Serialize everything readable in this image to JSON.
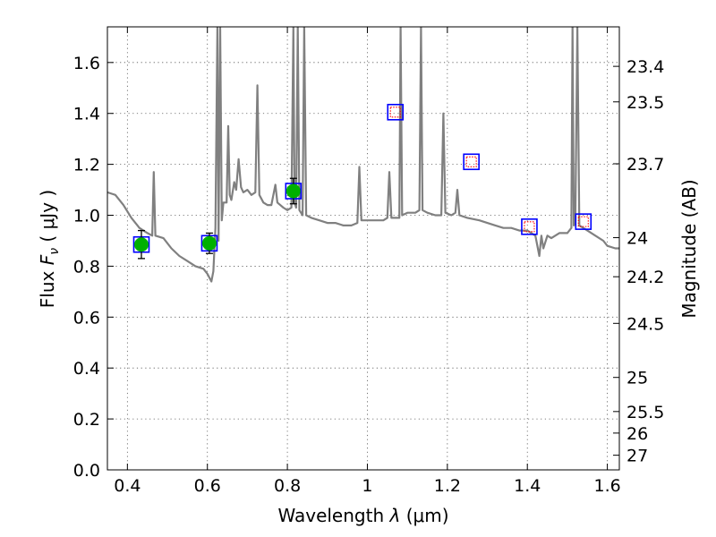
{
  "chart_data": {
    "type": "scatter",
    "xlabel": "Wavelength",
    "xlabel_symbol": "λ",
    "xlabel_unit": "(μm)",
    "ylabel": "Flux",
    "ylabel_symbol": "F",
    "ylabel_sub": "ν",
    "ylabel_unit": "( μJy )",
    "y2label": "Magnitude (AB)",
    "xlim": [
      0.35,
      1.63
    ],
    "ylim": [
      0.0,
      1.74
    ],
    "grid": true,
    "x_ticks": [
      0.4,
      0.6,
      0.8,
      1.0,
      1.2,
      1.4,
      1.6
    ],
    "x_tick_labels": [
      "0.4",
      "0.6",
      "0.8",
      "1",
      "1.2",
      "1.4",
      "1.6"
    ],
    "y_ticks": [
      0.0,
      0.2,
      0.4,
      0.6,
      0.8,
      1.0,
      1.2,
      1.4,
      1.6
    ],
    "y_tick_labels": [
      "0.0",
      "0.2",
      "0.4",
      "0.6",
      "0.8",
      "1.0",
      "1.2",
      "1.4",
      "1.6"
    ],
    "y2_ticks": [
      23.4,
      23.5,
      23.7,
      24,
      24.2,
      24.5,
      25,
      25.5,
      26,
      27
    ],
    "y2_tick_labels": [
      "23.4",
      "23.5",
      "23.7",
      "24",
      "24.2",
      "24.5",
      "25",
      "25.5",
      "26",
      "27"
    ],
    "model_spectrum": {
      "color": "#808080",
      "points": [
        [
          0.35,
          1.09
        ],
        [
          0.37,
          1.08
        ],
        [
          0.39,
          1.04
        ],
        [
          0.41,
          0.99
        ],
        [
          0.43,
          0.95
        ],
        [
          0.45,
          0.93
        ],
        [
          0.462,
          0.92
        ],
        [
          0.466,
          1.17
        ],
        [
          0.47,
          0.92
        ],
        [
          0.49,
          0.91
        ],
        [
          0.51,
          0.87
        ],
        [
          0.53,
          0.84
        ],
        [
          0.55,
          0.82
        ],
        [
          0.57,
          0.8
        ],
        [
          0.59,
          0.79
        ],
        [
          0.6,
          0.77
        ],
        [
          0.61,
          0.74
        ],
        [
          0.615,
          0.78
        ],
        [
          0.62,
          0.95
        ],
        [
          0.625,
          1.74
        ],
        [
          0.628,
          0.9
        ],
        [
          0.632,
          1.74
        ],
        [
          0.636,
          0.98
        ],
        [
          0.64,
          1.05
        ],
        [
          0.648,
          1.05
        ],
        [
          0.652,
          1.35
        ],
        [
          0.656,
          1.08
        ],
        [
          0.66,
          1.06
        ],
        [
          0.667,
          1.13
        ],
        [
          0.672,
          1.1
        ],
        [
          0.678,
          1.22
        ],
        [
          0.684,
          1.11
        ],
        [
          0.69,
          1.09
        ],
        [
          0.7,
          1.1
        ],
        [
          0.71,
          1.08
        ],
        [
          0.72,
          1.09
        ],
        [
          0.725,
          1.51
        ],
        [
          0.73,
          1.08
        ],
        [
          0.74,
          1.05
        ],
        [
          0.75,
          1.04
        ],
        [
          0.76,
          1.04
        ],
        [
          0.77,
          1.12
        ],
        [
          0.775,
          1.05
        ],
        [
          0.79,
          1.03
        ],
        [
          0.8,
          1.02
        ],
        [
          0.81,
          1.03
        ],
        [
          0.815,
          1.74
        ],
        [
          0.818,
          1.05
        ],
        [
          0.822,
          1.03
        ],
        [
          0.826,
          1.74
        ],
        [
          0.83,
          1.02
        ],
        [
          0.838,
          1.0
        ],
        [
          0.842,
          1.74
        ],
        [
          0.847,
          1.0
        ],
        [
          0.86,
          0.99
        ],
        [
          0.88,
          0.98
        ],
        [
          0.9,
          0.97
        ],
        [
          0.92,
          0.97
        ],
        [
          0.94,
          0.96
        ],
        [
          0.96,
          0.96
        ],
        [
          0.975,
          0.97
        ],
        [
          0.98,
          1.19
        ],
        [
          0.985,
          0.98
        ],
        [
          1.0,
          0.98
        ],
        [
          1.02,
          0.98
        ],
        [
          1.04,
          0.98
        ],
        [
          1.05,
          0.99
        ],
        [
          1.055,
          1.17
        ],
        [
          1.06,
          0.99
        ],
        [
          1.07,
          0.99
        ],
        [
          1.08,
          0.99
        ],
        [
          1.083,
          1.74
        ],
        [
          1.087,
          1.0
        ],
        [
          1.1,
          1.01
        ],
        [
          1.12,
          1.01
        ],
        [
          1.13,
          1.02
        ],
        [
          1.134,
          1.74
        ],
        [
          1.138,
          1.02
        ],
        [
          1.15,
          1.01
        ],
        [
          1.17,
          1.0
        ],
        [
          1.185,
          1.0
        ],
        [
          1.19,
          1.4
        ],
        [
          1.195,
          1.01
        ],
        [
          1.21,
          1.0
        ],
        [
          1.22,
          1.01
        ],
        [
          1.225,
          1.1
        ],
        [
          1.23,
          1.0
        ],
        [
          1.25,
          0.99
        ],
        [
          1.28,
          0.98
        ],
        [
          1.3,
          0.97
        ],
        [
          1.32,
          0.96
        ],
        [
          1.34,
          0.95
        ],
        [
          1.36,
          0.95
        ],
        [
          1.38,
          0.94
        ],
        [
          1.4,
          0.94
        ],
        [
          1.42,
          0.92
        ],
        [
          1.43,
          0.84
        ],
        [
          1.435,
          0.92
        ],
        [
          1.44,
          0.87
        ],
        [
          1.45,
          0.92
        ],
        [
          1.46,
          0.91
        ],
        [
          1.48,
          0.93
        ],
        [
          1.5,
          0.93
        ],
        [
          1.51,
          0.95
        ],
        [
          1.513,
          1.74
        ],
        [
          1.516,
          0.96
        ],
        [
          1.52,
          0.97
        ],
        [
          1.525,
          1.74
        ],
        [
          1.53,
          0.96
        ],
        [
          1.54,
          0.95
        ],
        [
          1.55,
          0.94
        ],
        [
          1.57,
          0.92
        ],
        [
          1.59,
          0.9
        ],
        [
          1.6,
          0.88
        ],
        [
          1.62,
          0.87
        ],
        [
          1.63,
          0.87
        ]
      ]
    },
    "observed_points": {
      "color": "#00b000",
      "points": [
        {
          "x": 0.435,
          "y": 0.885,
          "err": 0.055
        },
        {
          "x": 0.605,
          "y": 0.89,
          "err": 0.04
        },
        {
          "x": 0.815,
          "y": 1.095,
          "err": 0.05
        }
      ]
    },
    "model_photometry": {
      "color": "#0000ff",
      "points": [
        {
          "x": 0.435,
          "y": 0.885
        },
        {
          "x": 0.605,
          "y": 0.89
        },
        {
          "x": 0.815,
          "y": 1.095
        },
        {
          "x": 1.07,
          "y": 1.405
        },
        {
          "x": 1.26,
          "y": 1.21
        },
        {
          "x": 1.405,
          "y": 0.955
        },
        {
          "x": 1.54,
          "y": 0.975
        }
      ]
    },
    "upper_limit_markers": {
      "color": "#ff0000",
      "points": [
        {
          "x": 1.07,
          "y": 1.405
        },
        {
          "x": 1.26,
          "y": 1.21
        },
        {
          "x": 1.405,
          "y": 0.955
        },
        {
          "x": 1.54,
          "y": 0.975
        }
      ]
    }
  }
}
